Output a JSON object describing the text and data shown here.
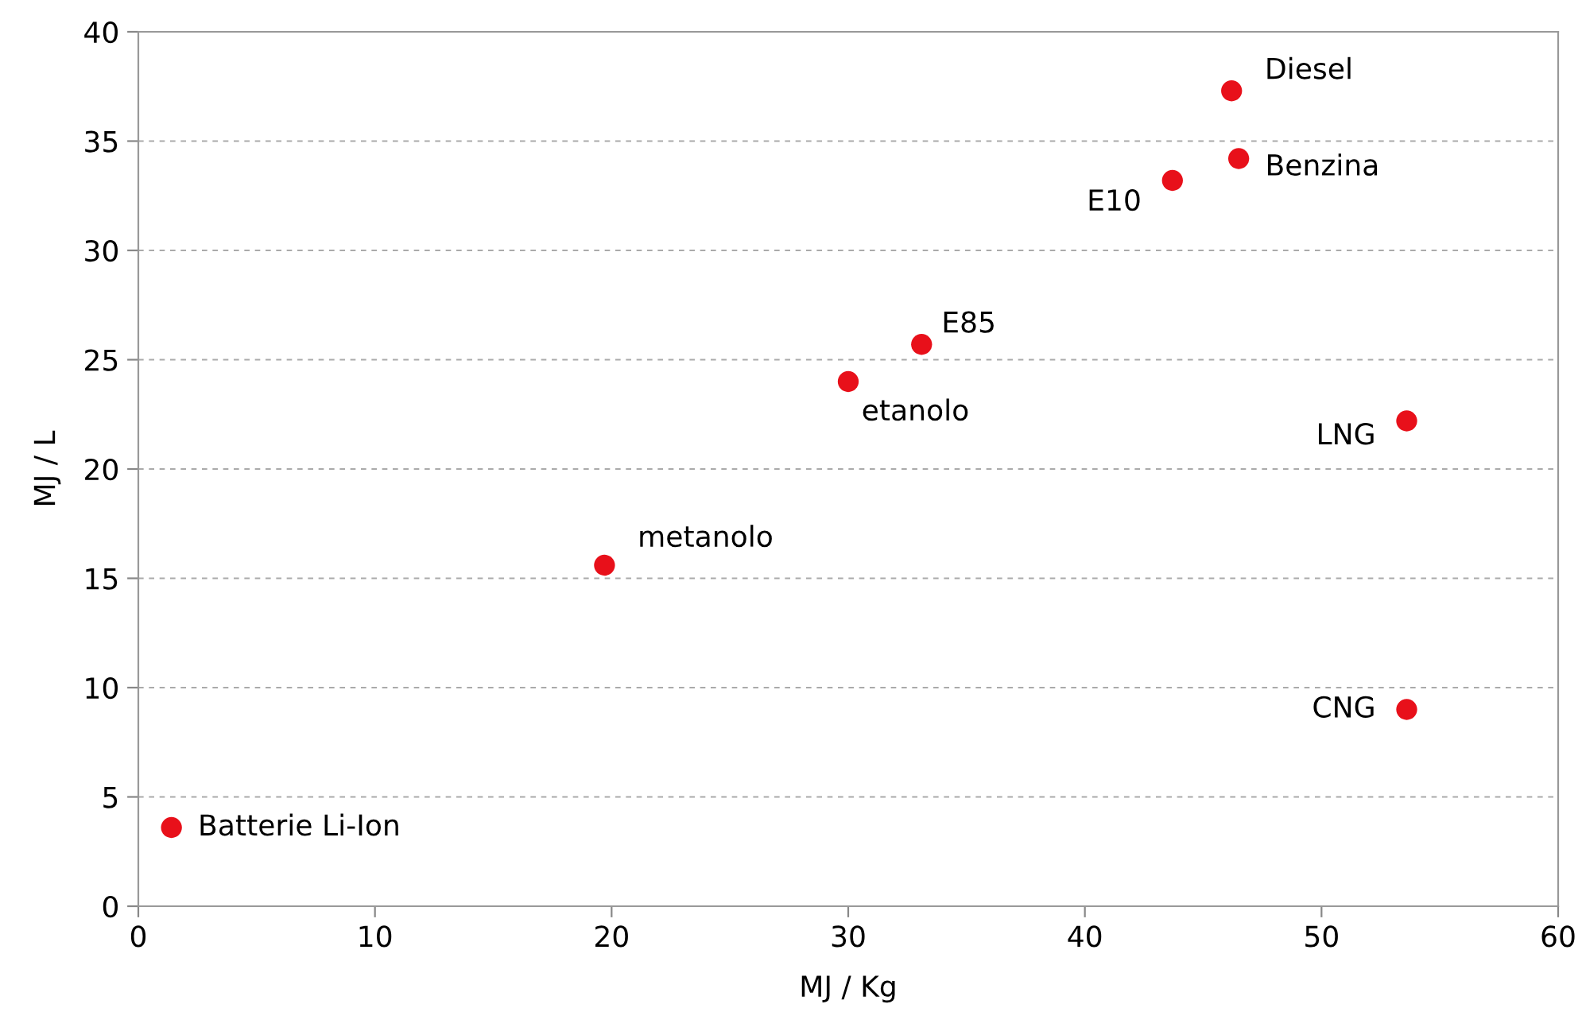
{
  "chart_data": {
    "type": "scatter",
    "xlabel": "MJ / Kg",
    "ylabel": "MJ / L",
    "x": [
      1.4,
      19.7,
      30.0,
      33.1,
      43.7,
      46.2,
      46.5,
      53.6,
      53.6
    ],
    "series": [
      {
        "color": "#e8101a",
        "values": [
          3.6,
          15.6,
          24.0,
          25.7,
          33.2,
          37.3,
          34.2,
          22.2,
          9.0
        ]
      }
    ],
    "marker": "circle",
    "xlim": [
      0,
      60
    ],
    "xticks": [
      0,
      10,
      20,
      30,
      40,
      50,
      60
    ],
    "ylim": [
      0,
      40
    ],
    "yticks": [
      0,
      5,
      10,
      15,
      20,
      25,
      30,
      35,
      40
    ],
    "grid": "y",
    "legend": false,
    "annotations": [
      {
        "text": "Batterie Li-Ion",
        "x": 1.4,
        "y": 3.6
      },
      {
        "text": "metanolo",
        "x": 19.7,
        "y": 15.6
      },
      {
        "text": "etanolo",
        "x": 30.0,
        "y": 24.0
      },
      {
        "text": "E85",
        "x": 33.1,
        "y": 25.7
      },
      {
        "text": "E10",
        "x": 43.7,
        "y": 33.2
      },
      {
        "text": "Diesel",
        "x": 46.2,
        "y": 37.3
      },
      {
        "text": "Benzina",
        "x": 46.5,
        "y": 34.2
      },
      {
        "text": "LNG",
        "x": 53.6,
        "y": 22.2
      },
      {
        "text": "CNG",
        "x": 53.6,
        "y": 9.0
      }
    ]
  }
}
